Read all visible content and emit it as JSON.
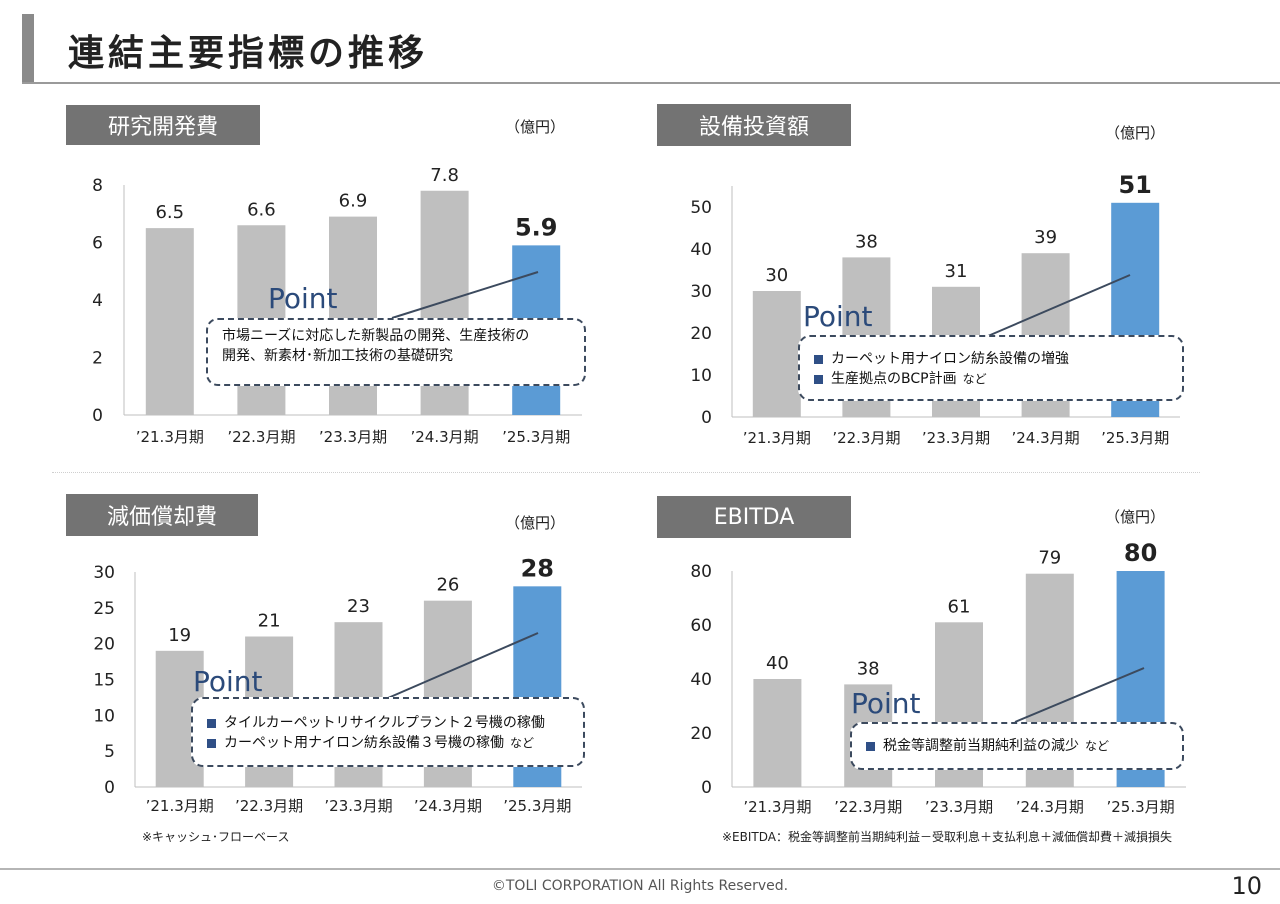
{
  "page_title": "連結主要指標の推移",
  "footer": "©TOLI CORPORATION All Rights Reserved.",
  "page_number": "10",
  "colors": {
    "gray_bar": "#bfbfbf",
    "highlight_bar": "#5b9bd5",
    "tag_bg": "#737373",
    "point_text": "#2b4a7a"
  },
  "panels": [
    {
      "tag": "研究開発費",
      "unit": "（億円）",
      "point": "Point",
      "point_lines": [
        "市場ニーズに対応した新製品の開発、生産技術の",
        "開発、新素材･新加工技術の基礎研究"
      ],
      "nado": ""
    },
    {
      "tag": "設備投資額",
      "unit": "（億円）",
      "point": "Point",
      "point_lines": [
        "カーペット用ナイロン紡糸設備の増強",
        "生産拠点のBCP計画"
      ],
      "nado": "など"
    },
    {
      "tag": "減価償却費",
      "unit": "（億円）",
      "point": "Point",
      "point_lines": [
        "タイルカーペットリサイクルプラント２号機の稼働",
        "カーペット用ナイロン紡糸設備３号機の稼働"
      ],
      "nado": "など",
      "note": "※キャッシュ･フローベース"
    },
    {
      "tag": "EBITDA",
      "unit": "（億円）",
      "point": "Point",
      "point_lines": [
        "税金等調整前当期純利益の減少"
      ],
      "nado": "など",
      "note": "※EBITDA：税金等調整前当期純利益－受取利息＋支払利息＋減価償却費＋減損損失"
    }
  ],
  "chart_data": [
    {
      "type": "bar",
      "categories": [
        "’21.3月期",
        "’22.3月期",
        "’23.3月期",
        "’24.3月期",
        "’25.3月期"
      ],
      "values": [
        6.5,
        6.6,
        6.9,
        7.8,
        5.9
      ],
      "labels": [
        "6.5",
        "6.6",
        "6.9",
        "7.8",
        "5.9"
      ],
      "ylim": [
        0,
        8
      ],
      "yticks": [
        0,
        2,
        4,
        6,
        8
      ],
      "highlight_index": 4,
      "ylabel": ""
    },
    {
      "type": "bar",
      "categories": [
        "’21.3月期",
        "’22.3月期",
        "’23.3月期",
        "’24.3月期",
        "’25.3月期"
      ],
      "values": [
        30,
        38,
        31,
        39,
        51
      ],
      "labels": [
        "30",
        "38",
        "31",
        "39",
        "51"
      ],
      "ylim": [
        0,
        55
      ],
      "yticks": [
        0,
        10,
        20,
        30,
        40,
        50
      ],
      "highlight_index": 4,
      "ylabel": ""
    },
    {
      "type": "bar",
      "categories": [
        "’21.3月期",
        "’22.3月期",
        "’23.3月期",
        "’24.3月期",
        "’25.3月期"
      ],
      "values": [
        19,
        21,
        23,
        26,
        28
      ],
      "labels": [
        "19",
        "21",
        "23",
        "26",
        "28"
      ],
      "ylim": [
        0,
        30
      ],
      "yticks": [
        0,
        5,
        10,
        15,
        20,
        25,
        30
      ],
      "highlight_index": 4,
      "ylabel": ""
    },
    {
      "type": "bar",
      "categories": [
        "’21.3月期",
        "’22.3月期",
        "’23.3月期",
        "’24.3月期",
        "’25.3月期"
      ],
      "values": [
        40,
        38,
        61,
        79,
        80
      ],
      "labels": [
        "40",
        "38",
        "61",
        "79",
        "80"
      ],
      "ylim": [
        0,
        80
      ],
      "yticks": [
        0,
        20,
        40,
        60,
        80
      ],
      "highlight_index": 4,
      "ylabel": ""
    }
  ]
}
